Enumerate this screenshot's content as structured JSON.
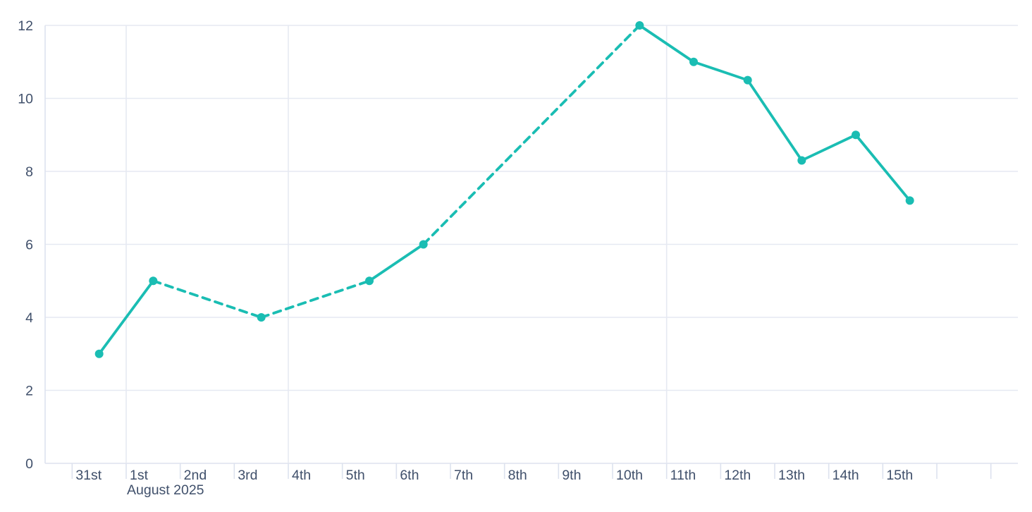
{
  "page": {
    "background": "#ffffff"
  },
  "chart_data": {
    "type": "line",
    "title": "",
    "xlabel": "",
    "ylabel": "",
    "x_labels": [
      "31st",
      "1st",
      "2nd",
      "3rd",
      "4th",
      "5th",
      "6th",
      "7th",
      "8th",
      "9th",
      "10th",
      "11th",
      "12th",
      "13th",
      "14th",
      "15th"
    ],
    "x_sublabel": {
      "text": "August 2025",
      "under": "1st"
    },
    "extra_trailing_slots": 1,
    "y_tick_labels": [
      "0",
      "2",
      "4",
      "6",
      "8",
      "10",
      "12"
    ],
    "y_ticks": [
      0,
      2,
      4,
      6,
      8,
      10,
      12
    ],
    "ylim": [
      0,
      12
    ],
    "grid": {
      "horizontal": true,
      "vertical_major_at": [
        "1st",
        "4th",
        "11th"
      ],
      "minor_ticks_every_day": true
    },
    "legend": null,
    "series": [
      {
        "points": [
          {
            "x": "31st",
            "y": 3
          },
          {
            "x": "1st",
            "y": 5
          },
          {
            "x": "3rd",
            "y": 4
          },
          {
            "x": "5th",
            "y": 5
          },
          {
            "x": "6th",
            "y": 6
          },
          {
            "x": "10th",
            "y": 12
          },
          {
            "x": "11th",
            "y": 11
          },
          {
            "x": "12th",
            "y": 10.5
          },
          {
            "x": "13th",
            "y": 8.3
          },
          {
            "x": "14th",
            "y": 9
          },
          {
            "x": "15th",
            "y": 7.2
          }
        ],
        "segment_styles": [
          "solid",
          "dashed",
          "dashed",
          "solid",
          "dashed",
          "solid",
          "solid",
          "solid",
          "solid",
          "solid"
        ]
      }
    ],
    "colors": {
      "line": "#1abdb3",
      "marker": "#1abdb3",
      "grid": "#e6e9f2",
      "axis": "#dde2ee",
      "tick_label": "#40506b"
    }
  }
}
